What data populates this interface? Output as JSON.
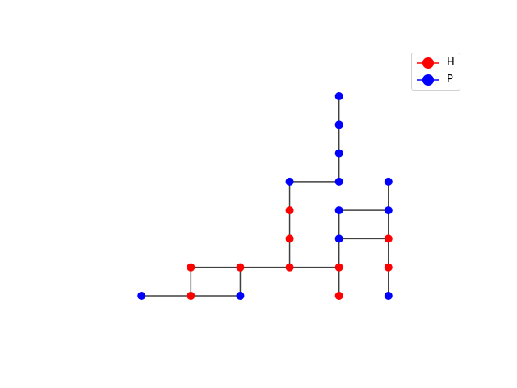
{
  "chart_data": {
    "type": "lattice-path",
    "nodes": [
      {
        "x": 0,
        "y": 0,
        "type": "P"
      },
      {
        "x": 1,
        "y": 0,
        "type": "H"
      },
      {
        "x": 1,
        "y": 1,
        "type": "H"
      },
      {
        "x": 2,
        "y": 1,
        "type": "H"
      },
      {
        "x": 2,
        "y": 0,
        "type": "P"
      },
      {
        "x": 3,
        "y": 1,
        "type": "H"
      },
      {
        "x": 3,
        "y": 2,
        "type": "H"
      },
      {
        "x": 3,
        "y": 3,
        "type": "H"
      },
      {
        "x": 3,
        "y": 4,
        "type": "P"
      },
      {
        "x": 4,
        "y": 4,
        "type": "P"
      },
      {
        "x": 4,
        "y": 5,
        "type": "P"
      },
      {
        "x": 4,
        "y": 6,
        "type": "P"
      },
      {
        "x": 4,
        "y": 7,
        "type": "P"
      },
      {
        "x": 4,
        "y": 1,
        "type": "H"
      },
      {
        "x": 4,
        "y": 0,
        "type": "H"
      },
      {
        "x": 4,
        "y": 2,
        "type": "P"
      },
      {
        "x": 4,
        "y": 3,
        "type": "P"
      },
      {
        "x": 5,
        "y": 3,
        "type": "P"
      },
      {
        "x": 5,
        "y": 4,
        "type": "P"
      },
      {
        "x": 5,
        "y": 2,
        "type": "H"
      },
      {
        "x": 5,
        "y": 1,
        "type": "H"
      },
      {
        "x": 5,
        "y": 0,
        "type": "P"
      }
    ],
    "edges": [
      [
        0,
        1
      ],
      [
        1,
        2
      ],
      [
        2,
        3
      ],
      [
        3,
        4
      ],
      [
        1,
        4
      ],
      [
        3,
        5
      ],
      [
        5,
        6
      ],
      [
        6,
        7
      ],
      [
        7,
        8
      ],
      [
        8,
        9
      ],
      [
        9,
        10
      ],
      [
        10,
        11
      ],
      [
        11,
        12
      ],
      [
        5,
        13
      ],
      [
        13,
        14
      ],
      [
        13,
        15
      ],
      [
        15,
        16
      ],
      [
        16,
        17
      ],
      [
        17,
        18
      ],
      [
        15,
        19
      ],
      [
        19,
        20
      ],
      [
        20,
        21
      ],
      [
        17,
        19
      ]
    ],
    "xlim": [
      -0.2,
      5.2
    ],
    "ylim": [
      -0.2,
      7.2
    ],
    "colors": {
      "H": "#ff0000",
      "P": "#0000ff",
      "edge": "#404040"
    },
    "legend": {
      "position": "top-right",
      "entries": [
        {
          "label": "H",
          "color": "#ff0000"
        },
        {
          "label": "P",
          "color": "#0000ff"
        }
      ]
    }
  }
}
